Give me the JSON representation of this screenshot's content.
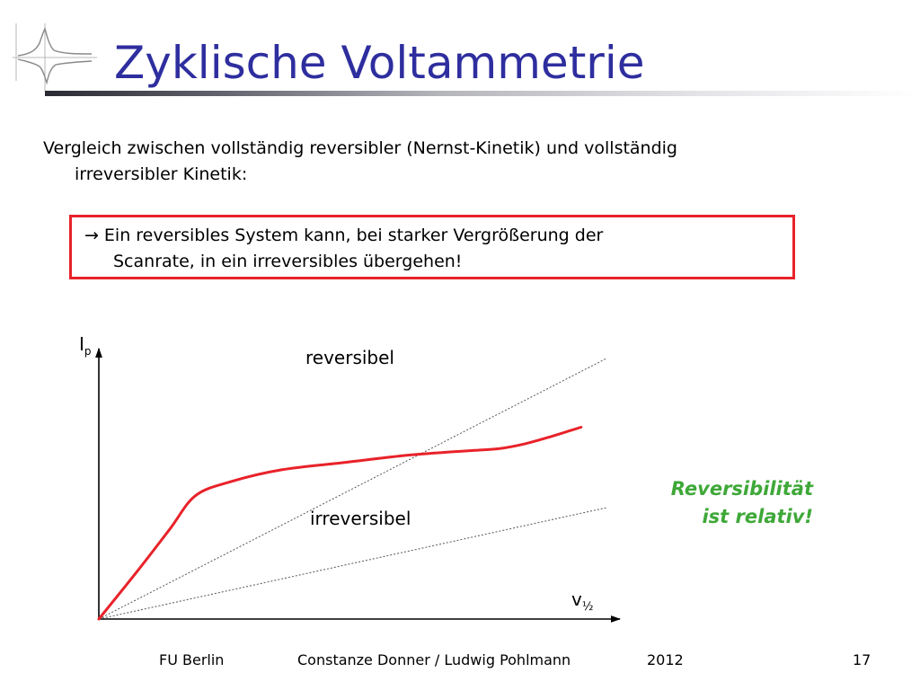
{
  "title": "Zyklische Voltammetrie",
  "intro": {
    "line1": "Vergleich zwischen vollständig reversibler (Nernst-Kinetik) und vollständig",
    "line2": "irreversibler Kinetik:"
  },
  "callout": {
    "arrow": "→",
    "line1": "Ein reversibles System kann, bei starker Vergrößerung der",
    "line2": "Scanrate, in ein irreversibles übergehen!",
    "border_color": "#e8222a"
  },
  "chart_data": {
    "type": "line",
    "ylabel": "I",
    "ylabel_subscript": "p",
    "xlabel": "v",
    "xlabel_subscript": "½",
    "series": [
      {
        "name": "reversibel",
        "style": "dotted",
        "x": [
          0,
          1
        ],
        "y": [
          0,
          1.1
        ]
      },
      {
        "name": "irreversibel",
        "style": "dotted",
        "x": [
          0,
          1
        ],
        "y": [
          0,
          0.47
        ]
      },
      {
        "style": "solid",
        "color": "#e8222a",
        "x": [
          0,
          0.075,
          0.14,
          0.19,
          0.26,
          0.36,
          0.48,
          0.6,
          0.69,
          0.74,
          0.79,
          0.84,
          0.89,
          0.95
        ],
        "y": [
          0,
          0.2,
          0.38,
          0.52,
          0.58,
          0.63,
          0.66,
          0.69,
          0.705,
          0.712,
          0.72,
          0.74,
          0.77,
          0.81
        ]
      }
    ],
    "ylim": [
      0,
      1.1
    ],
    "xlim": [
      0,
      1
    ],
    "grid": false
  },
  "note": {
    "line1": "Reversibilität",
    "line2": "ist relativ!",
    "color": "#3ea838"
  },
  "footer": {
    "institution": "FU Berlin",
    "authors": "Constanze Donner / Ludwig Pohlmann",
    "year": "2012",
    "page": "17"
  },
  "colors": {
    "title": "#2e2e9f",
    "accent_red": "#e8222a",
    "note_green": "#3ea838"
  },
  "icons": {
    "logo": "cyclic-voltammogram-logo-icon"
  }
}
